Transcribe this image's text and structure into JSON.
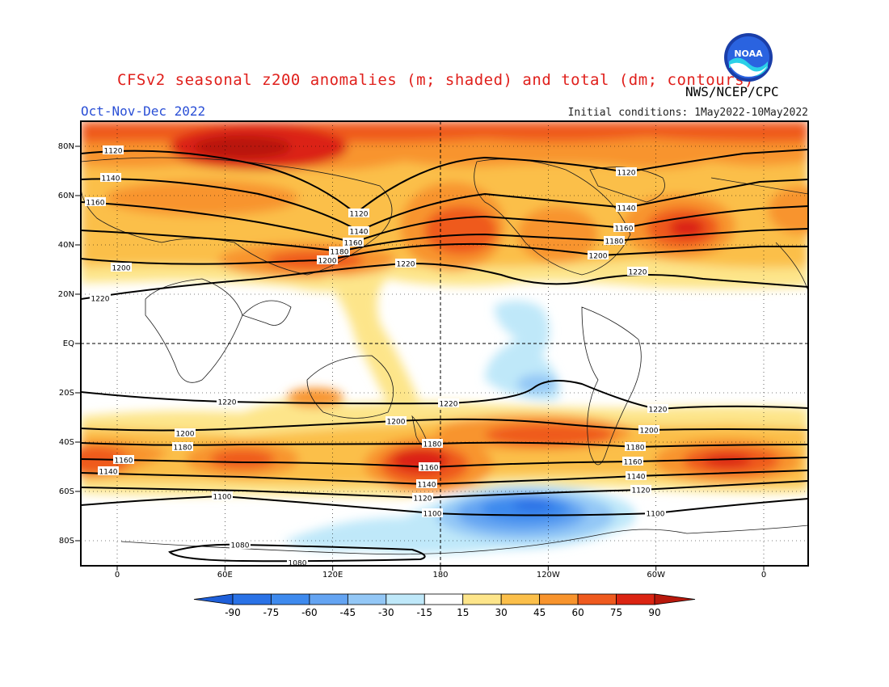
{
  "header": {
    "title": "CFSv2 seasonal z200 anomalies (m; shaded) and total (dm; contours)",
    "credit": "NWS/NCEP/CPC",
    "season": "Oct-Nov-Dec 2022",
    "initial_conditions": "Initial conditions: 1May2022-10May2022",
    "logo_text": "NOAA"
  },
  "axes": {
    "lat_labels": [
      "80N",
      "60N",
      "40N",
      "20N",
      "EQ",
      "20S",
      "40S",
      "60S",
      "80S"
    ],
    "lat_values": [
      80,
      60,
      40,
      20,
      0,
      -20,
      -40,
      -60,
      -80
    ],
    "lon_labels": [
      "0",
      "60E",
      "120E",
      "180",
      "120W",
      "60W",
      "0"
    ],
    "lon_values": [
      0,
      60,
      120,
      180,
      240,
      300,
      360
    ]
  },
  "colorbar": {
    "labels": [
      "-90",
      "-75",
      "-60",
      "-45",
      "-30",
      "-15",
      "15",
      "30",
      "45",
      "60",
      "75",
      "90"
    ],
    "colors": [
      "#1e5fd9",
      "#2a72e6",
      "#3e8aee",
      "#64a4f2",
      "#93c7f6",
      "#bfe8f9",
      "#ffffff",
      "#fde58a",
      "#fbbf4a",
      "#f8942d",
      "#ef5a1f",
      "#db2412",
      "#b8180c"
    ]
  },
  "contours": [
    {
      "label": "1120",
      "positions": [
        [
          140,
          186
        ],
        [
          775,
          213
        ],
        [
          444,
          264
        ],
        [
          523,
          616
        ],
        [
          793,
          606
        ]
      ]
    },
    {
      "label": "1140",
      "positions": [
        [
          137,
          220
        ],
        [
          444,
          286
        ],
        [
          775,
          257
        ],
        [
          528,
          599
        ],
        [
          787,
          589
        ],
        [
          134,
          583
        ]
      ]
    },
    {
      "label": "1160",
      "positions": [
        [
          118,
          250
        ],
        [
          437,
          300
        ],
        [
          772,
          282
        ],
        [
          531,
          578
        ],
        [
          783,
          571
        ],
        [
          153,
          569
        ]
      ]
    },
    {
      "label": "1180",
      "positions": [
        [
          420,
          311
        ],
        [
          760,
          298
        ],
        [
          535,
          549
        ],
        [
          786,
          553
        ],
        [
          226,
          553
        ]
      ]
    },
    {
      "label": "1200",
      "positions": [
        [
          150,
          331
        ],
        [
          405,
          322
        ],
        [
          740,
          316
        ],
        [
          490,
          521
        ],
        [
          803,
          532
        ],
        [
          229,
          536
        ]
      ]
    },
    {
      "label": "1220",
      "positions": [
        [
          124,
          369
        ],
        [
          502,
          326
        ],
        [
          789,
          336
        ],
        [
          281,
          497
        ],
        [
          555,
          499
        ],
        [
          814,
          506
        ]
      ]
    },
    {
      "label": "1100",
      "positions": [
        [
          275,
          614
        ],
        [
          535,
          635
        ],
        [
          811,
          635
        ]
      ]
    },
    {
      "label": "1080",
      "positions": [
        [
          297,
          674
        ],
        [
          368,
          696
        ]
      ]
    }
  ]
}
